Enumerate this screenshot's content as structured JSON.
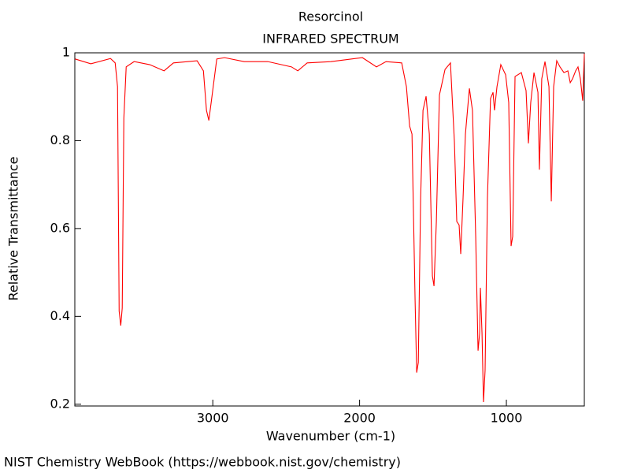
{
  "chart_data": {
    "type": "line",
    "title": "Resorcinol",
    "subtitle": "INFRARED SPECTRUM",
    "x_label": "Wavenumber (cm-1)",
    "y_label": "Relative Transmittance",
    "source": "NIST Chemistry WebBook (https://webbook.nist.gov/chemistry)",
    "xlim": [
      3940,
      469
    ],
    "ylim": [
      0.196,
      1.0
    ],
    "xticks": [
      3000,
      2000,
      1000
    ],
    "yticks": [
      {
        "value": 0.2,
        "label": "0.2"
      },
      {
        "value": 0.4,
        "label": "0.4"
      },
      {
        "value": 0.6,
        "label": "0.6"
      },
      {
        "value": 0.8,
        "label": "0.8"
      },
      {
        "value": 1,
        "label": "1"
      }
    ],
    "series": [
      {
        "color": "#ff0000",
        "x": [
          3938,
          3831,
          3697,
          3665,
          3649,
          3638,
          3627,
          3617,
          3606,
          3590,
          3536,
          3429,
          3332,
          3268,
          3107,
          3064,
          3043,
          3027,
          3011,
          2973,
          2920,
          2786,
          2625,
          2464,
          2421,
          2357,
          2196,
          1981,
          1885,
          1820,
          1713,
          1681,
          1659,
          1643,
          1622,
          1611,
          1600,
          1584,
          1568,
          1547,
          1525,
          1504,
          1493,
          1477,
          1456,
          1418,
          1381,
          1354,
          1338,
          1322,
          1311,
          1295,
          1279,
          1252,
          1231,
          1209,
          1193,
          1182,
          1177,
          1166,
          1156,
          1145,
          1129,
          1108,
          1091,
          1081,
          1064,
          1038,
          1005,
          984,
          968,
          957,
          941,
          898,
          866,
          855,
          850,
          834,
          812,
          785,
          775,
          759,
          737,
          710,
          694,
          678,
          657,
          635,
          608,
          581,
          565,
          549,
          528,
          512,
          496,
          480,
          469
        ],
        "values": [
          0.986,
          0.975,
          0.987,
          0.977,
          0.923,
          0.412,
          0.379,
          0.419,
          0.851,
          0.968,
          0.98,
          0.973,
          0.959,
          0.977,
          0.982,
          0.959,
          0.869,
          0.846,
          0.887,
          0.986,
          0.989,
          0.98,
          0.98,
          0.968,
          0.959,
          0.977,
          0.98,
          0.989,
          0.968,
          0.98,
          0.977,
          0.923,
          0.833,
          0.815,
          0.438,
          0.272,
          0.295,
          0.67,
          0.869,
          0.901,
          0.815,
          0.492,
          0.469,
          0.616,
          0.904,
          0.962,
          0.977,
          0.797,
          0.616,
          0.608,
          0.542,
          0.67,
          0.815,
          0.919,
          0.869,
          0.582,
          0.322,
          0.362,
          0.465,
          0.362,
          0.205,
          0.277,
          0.67,
          0.896,
          0.91,
          0.869,
          0.923,
          0.973,
          0.95,
          0.887,
          0.56,
          0.582,
          0.946,
          0.955,
          0.914,
          0.833,
          0.794,
          0.887,
          0.955,
          0.91,
          0.734,
          0.941,
          0.98,
          0.923,
          0.662,
          0.923,
          0.982,
          0.968,
          0.955,
          0.959,
          0.932,
          0.941,
          0.959,
          0.968,
          0.941,
          0.891,
          0.998
        ]
      }
    ]
  }
}
